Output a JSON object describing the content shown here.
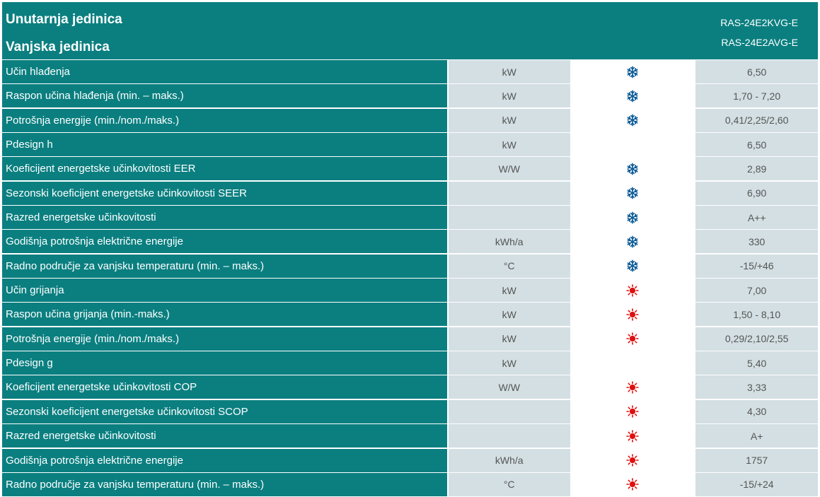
{
  "header": {
    "indoor_label": "Unutarnja jedinica",
    "outdoor_label": "Vanjska jedinica",
    "indoor_model": "RAS-24E2KVG-E",
    "outdoor_model": "RAS-24E2AVG-E"
  },
  "colors": {
    "teal": "#0b7f80",
    "light_cell": "#d3dfe3",
    "cooling_icon": "#0a5a96",
    "heating_icon": "#e01010"
  },
  "rows": [
    {
      "label": "Učin hlađenja",
      "unit": "kW",
      "mode": "snowflake-icon",
      "value": "6,50"
    },
    {
      "label": "Raspon učina hlađenja (min. – maks.)",
      "unit": "kW",
      "mode": "snowflake-icon",
      "value": "1,70 - 7,20"
    },
    {
      "label": "Potrošnja energije (min./nom./maks.)",
      "unit": "kW",
      "mode": "snowflake-icon",
      "value": "0,41/2,25/2,60"
    },
    {
      "label": "Pdesign h",
      "unit": "kW",
      "mode": "none",
      "value": "6,50"
    },
    {
      "label": "Koeficijent energetske učinkovitosti EER",
      "unit": "W/W",
      "mode": "snowflake-icon",
      "value": "2,89"
    },
    {
      "label": "Sezonski koeficijent energetske učinkovitosti SEER",
      "unit": "",
      "mode": "snowflake-icon",
      "value": "6,90"
    },
    {
      "label": "Razred energetske učinkovitosti",
      "unit": "",
      "mode": "snowflake-icon",
      "value": "A++"
    },
    {
      "label": "Godišnja potrošnja električne energije",
      "unit": "kWh/a",
      "mode": "snowflake-icon",
      "value": "330"
    },
    {
      "label": "Radno područje za vanjsku temperaturu (min. – maks.)",
      "unit": "°C",
      "mode": "snowflake-icon",
      "value": "-15/+46"
    },
    {
      "label": "Učin grijanja",
      "unit": "kW",
      "mode": "sun-icon",
      "value": "7,00"
    },
    {
      "label": "Raspon učina grijanja (min.-maks.)",
      "unit": "kW",
      "mode": "sun-icon",
      "value": "1,50 - 8,10"
    },
    {
      "label": "Potrošnja energije (min./nom./maks.)",
      "unit": "kW",
      "mode": "sun-icon",
      "value": "0,29/2,10/2,55"
    },
    {
      "label": "Pdesign g",
      "unit": "kW",
      "mode": "none",
      "value": "5,40"
    },
    {
      "label": "Koeficijent energetske učinkovitosti COP",
      "unit": "W/W",
      "mode": "sun-icon",
      "value": "3,33"
    },
    {
      "label": "Sezonski koeficijent energetske učinkovitosti SCOP",
      "unit": "",
      "mode": "sun-icon",
      "value": "4,30"
    },
    {
      "label": "Razred energetske učinkovitosti",
      "unit": "",
      "mode": "sun-icon",
      "value": "A+"
    },
    {
      "label": "Godišnja potrošnja električne energije",
      "unit": "kWh/a",
      "mode": "sun-icon",
      "value": "1757"
    },
    {
      "label": "Radno područje za vanjsku temperaturu (min. – maks.)",
      "unit": "°C",
      "mode": "sun-icon",
      "value": "-15/+24"
    }
  ]
}
